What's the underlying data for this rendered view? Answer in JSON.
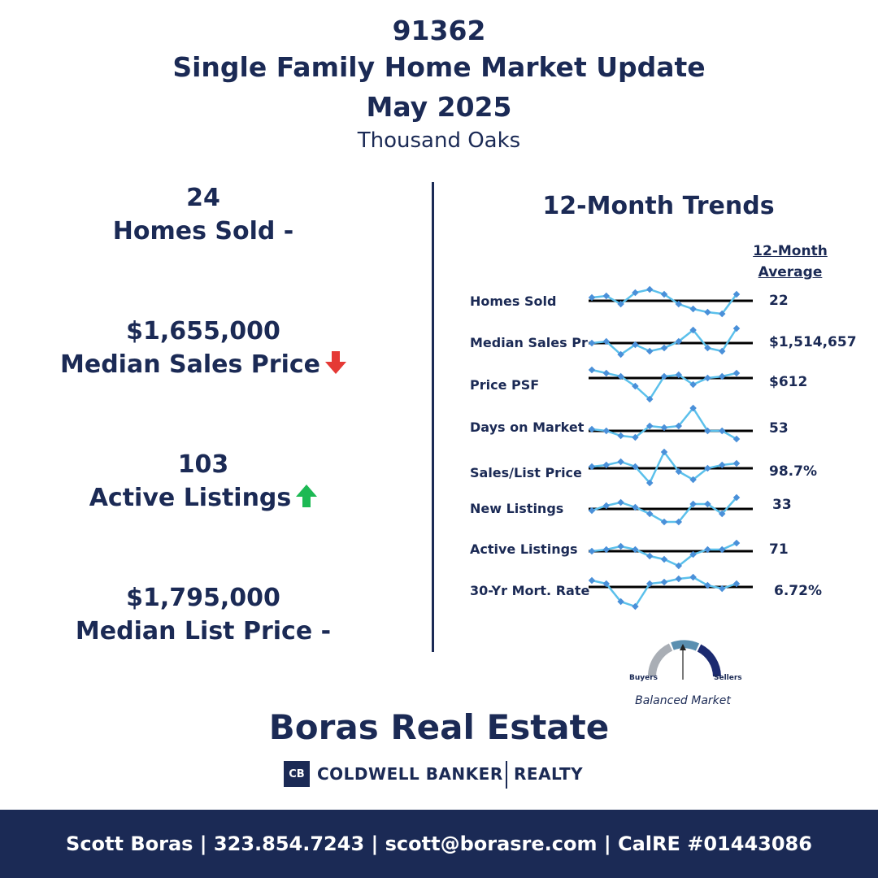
{
  "header": {
    "zip": "91362",
    "title": "Single Family Home Market Update",
    "period": "May 2025",
    "area": "Thousand Oaks"
  },
  "stats": [
    {
      "value": "24",
      "label": "Homes Sold -",
      "trend": "none"
    },
    {
      "value": "$1,655,000",
      "label": "Median Sales Price",
      "trend": "down"
    },
    {
      "value": "103",
      "label": "Active Listings",
      "trend": "up"
    },
    {
      "value": "$1,795,000",
      "label": "Median List Price -",
      "trend": "none"
    }
  ],
  "trends": {
    "title": "12-Month Trends",
    "avg_header_1": "12-Month",
    "avg_header_2": "Average",
    "line_color": "#5bc0eb",
    "marker_color": "#4a90d9",
    "rows": [
      {
        "label": "Homes Sold",
        "avg": "22"
      },
      {
        "label": "Median Sales Pr",
        "avg": "$1,514,657"
      },
      {
        "label": "Price PSF",
        "avg": "$612"
      },
      {
        "label": "Days on Market",
        "avg": "53"
      },
      {
        "label": "Sales/List Price",
        "avg": "98.7%"
      },
      {
        "label": "New Listings",
        "avg": "33"
      },
      {
        "label": "Active Listings",
        "avg": "71"
      },
      {
        "label": "30-Yr Mort. Rate",
        "avg": "6.72%"
      }
    ]
  },
  "gauge": {
    "left_label": "Buyers",
    "right_label": "Sellers",
    "caption": "Balanced Market",
    "colors": [
      "#a9aeb5",
      "#5a8fb0",
      "#1b2a70"
    ]
  },
  "brand": {
    "name": "Boras Real Estate",
    "logo_text": "CB",
    "company": "COLDWELL BANKER",
    "division": "REALTY"
  },
  "footer": {
    "text": "Scott Boras | 323.854.7243 | scott@borasre.com | CalRE #01443086"
  },
  "colors": {
    "navy": "#1b2a55",
    "down_arrow": "#e53935",
    "up_arrow": "#1db954"
  }
}
